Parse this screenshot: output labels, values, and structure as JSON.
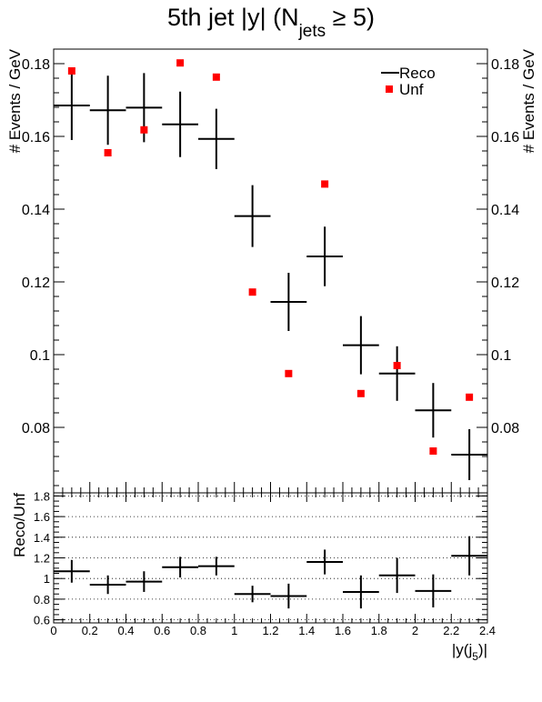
{
  "title": {
    "main": "5th jet |y| (N",
    "sub": "jets",
    "tail": " ≥ 5)"
  },
  "chart_data": [
    {
      "type": "scatter",
      "ylabel": "# Events / GeV",
      "ylim": [
        0.062,
        0.184
      ],
      "xlim": [
        0,
        2.4
      ],
      "yticks": [
        0.08,
        0.1,
        0.12,
        0.14,
        0.16,
        0.18
      ],
      "ytick_labels": [
        "0.08",
        "0.1",
        "0.12",
        "0.14",
        "0.16",
        "0.18"
      ],
      "legend_position": "top-right",
      "series": [
        {
          "name": "Reco",
          "style": "error-cross",
          "color": "#000000",
          "x": [
            0.1,
            0.3,
            0.5,
            0.7,
            0.9,
            1.1,
            1.3,
            1.5,
            1.7,
            1.9,
            2.1,
            2.3
          ],
          "xerr": 0.1,
          "y": [
            0.1685,
            0.1672,
            0.1679,
            0.1633,
            0.1593,
            0.1381,
            0.1145,
            0.127,
            0.1026,
            0.0948,
            0.0847,
            0.0725
          ],
          "yerr": [
            0.0095,
            0.0095,
            0.0095,
            0.009,
            0.0083,
            0.0085,
            0.008,
            0.0082,
            0.008,
            0.0075,
            0.0075,
            0.007
          ]
        },
        {
          "name": "Unf",
          "style": "square-marker",
          "color": "#ff0000",
          "x": [
            0.1,
            0.3,
            0.5,
            0.7,
            0.9,
            1.1,
            1.3,
            1.5,
            1.7,
            1.9,
            2.1,
            2.3
          ],
          "y": [
            0.178,
            0.1555,
            0.1618,
            0.1802,
            0.1763,
            0.1172,
            0.0948,
            0.1469,
            0.0893,
            0.097,
            0.0735,
            0.0883
          ]
        }
      ]
    },
    {
      "type": "scatter",
      "xlabel_main": "|y(j",
      "xlabel_sub": "5",
      "xlabel_tail": ")|",
      "ylabel": "Reco/Unf",
      "ylim": [
        0.57,
        1.83
      ],
      "xlim": [
        0,
        2.4
      ],
      "yticks": [
        0.6,
        0.8,
        1,
        1.2,
        1.4,
        1.6,
        1.8
      ],
      "ytick_labels": [
        "0.6",
        "0.8",
        "1",
        "1.2",
        "1.4",
        "1.6",
        "1.8"
      ],
      "xticks": [
        0,
        0.2,
        0.4,
        0.6,
        0.8,
        1,
        1.2,
        1.4,
        1.6,
        1.8,
        2,
        2.2,
        2.4
      ],
      "xtick_labels": [
        "0",
        "0.2",
        "0.4",
        "0.6",
        "0.8",
        "1",
        "1.2",
        "1.4",
        "1.6",
        "1.8",
        "2",
        "2.2",
        "2.4"
      ],
      "grid": "horizontal-dotted",
      "series": [
        {
          "name": "Reco/Unf",
          "style": "error-cross",
          "color": "#000000",
          "x": [
            0.1,
            0.3,
            0.5,
            0.7,
            0.9,
            1.1,
            1.3,
            1.5,
            1.7,
            1.9,
            2.1,
            2.3
          ],
          "xerr": 0.1,
          "y": [
            1.07,
            0.94,
            0.97,
            1.11,
            1.12,
            0.85,
            0.83,
            1.16,
            0.87,
            1.03,
            0.88,
            1.22
          ],
          "yerr": [
            0.11,
            0.09,
            0.1,
            0.1,
            0.09,
            0.08,
            0.12,
            0.12,
            0.16,
            0.17,
            0.16,
            0.19
          ]
        }
      ]
    }
  ]
}
